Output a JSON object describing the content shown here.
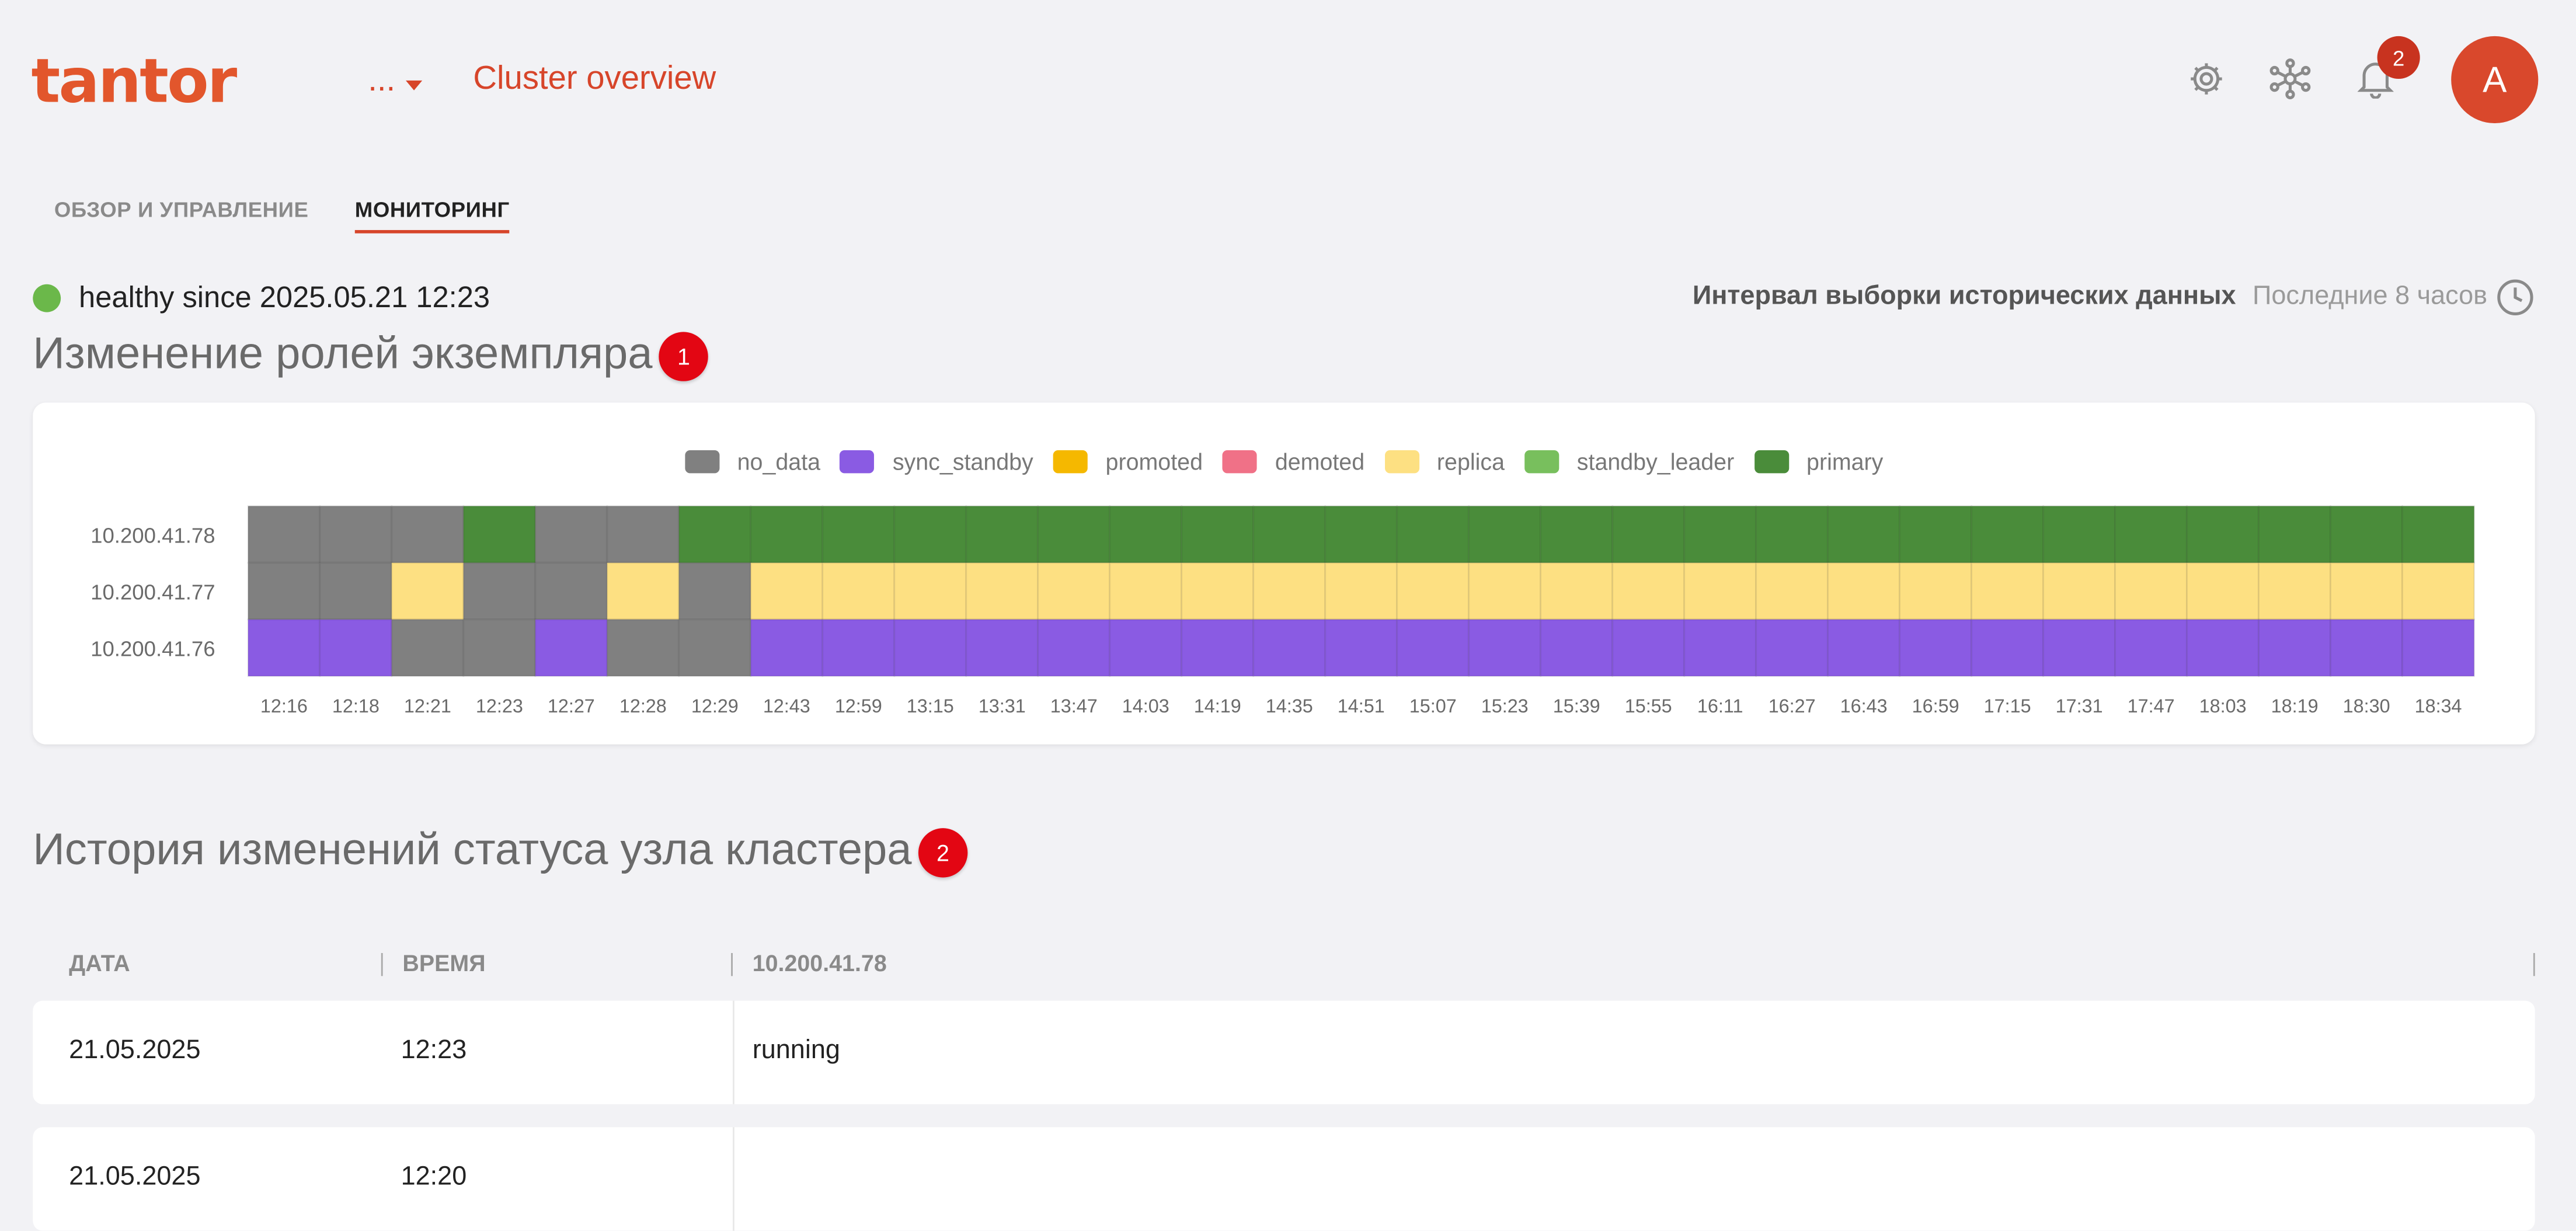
{
  "header": {
    "logo_text": "tantor",
    "context_menu": "...",
    "title": "Cluster overview",
    "icons": [
      "gear-icon",
      "cluster-network-icon",
      "bell-icon"
    ],
    "notifications_count": "2",
    "avatar_initial": "A"
  },
  "tabs": [
    {
      "label": "ОБЗОР И УПРАВЛЕНИЕ",
      "active": false
    },
    {
      "label": "МОНИТОРИНГ",
      "active": true
    }
  ],
  "status": {
    "text": "healthy since 2025.05.21 12:23",
    "color": "#6bb84a",
    "interval_label": "Интервал выборки исторических данных",
    "interval_value": "Последние 8 часов"
  },
  "roles_section": {
    "title": "Изменение ролей экземпляра",
    "badge": "1"
  },
  "history_section": {
    "title": "История изменений статуса узла кластера",
    "badge": "2"
  },
  "chart_data": {
    "type": "heatmap",
    "legend": [
      {
        "name": "no_data",
        "color": "#808080"
      },
      {
        "name": "sync_standby",
        "color": "#8a5be3"
      },
      {
        "name": "promoted",
        "color": "#f5b800"
      },
      {
        "name": "demoted",
        "color": "#f07187"
      },
      {
        "name": "replica",
        "color": "#fde082"
      },
      {
        "name": "standby_leader",
        "color": "#78bf5d"
      },
      {
        "name": "primary",
        "color": "#4a8c3a"
      }
    ],
    "x": [
      "12:16",
      "12:18",
      "12:21",
      "12:23",
      "12:27",
      "12:28",
      "12:29",
      "12:43",
      "12:59",
      "13:15",
      "13:31",
      "13:47",
      "14:03",
      "14:19",
      "14:35",
      "14:51",
      "15:07",
      "15:23",
      "15:39",
      "15:55",
      "16:11",
      "16:27",
      "16:43",
      "16:59",
      "17:15",
      "17:31",
      "17:47",
      "18:03",
      "18:19",
      "18:30",
      "18:34"
    ],
    "y": [
      "10.200.41.78",
      "10.200.41.77",
      "10.200.41.76"
    ],
    "values": [
      [
        "no_data",
        "no_data",
        "no_data",
        "primary",
        "no_data",
        "no_data",
        "primary",
        "primary",
        "primary",
        "primary",
        "primary",
        "primary",
        "primary",
        "primary",
        "primary",
        "primary",
        "primary",
        "primary",
        "primary",
        "primary",
        "primary",
        "primary",
        "primary",
        "primary",
        "primary",
        "primary",
        "primary",
        "primary",
        "primary",
        "primary",
        "primary"
      ],
      [
        "no_data",
        "no_data",
        "replica",
        "no_data",
        "no_data",
        "replica",
        "no_data",
        "replica",
        "replica",
        "replica",
        "replica",
        "replica",
        "replica",
        "replica",
        "replica",
        "replica",
        "replica",
        "replica",
        "replica",
        "replica",
        "replica",
        "replica",
        "replica",
        "replica",
        "replica",
        "replica",
        "replica",
        "replica",
        "replica",
        "replica",
        "replica"
      ],
      [
        "sync_standby",
        "sync_standby",
        "no_data",
        "no_data",
        "sync_standby",
        "no_data",
        "no_data",
        "sync_standby",
        "sync_standby",
        "sync_standby",
        "sync_standby",
        "sync_standby",
        "sync_standby",
        "sync_standby",
        "sync_standby",
        "sync_standby",
        "sync_standby",
        "sync_standby",
        "sync_standby",
        "sync_standby",
        "sync_standby",
        "sync_standby",
        "sync_standby",
        "sync_standby",
        "sync_standby",
        "sync_standby",
        "sync_standby",
        "sync_standby",
        "sync_standby",
        "sync_standby",
        "sync_standby"
      ]
    ]
  },
  "history_table": {
    "columns": [
      "ДАТА",
      "ВРЕМЯ",
      "10.200.41.78"
    ],
    "rows": [
      [
        "21.05.2025",
        "12:23",
        "running"
      ],
      [
        "21.05.2025",
        "12:20",
        ""
      ]
    ]
  }
}
